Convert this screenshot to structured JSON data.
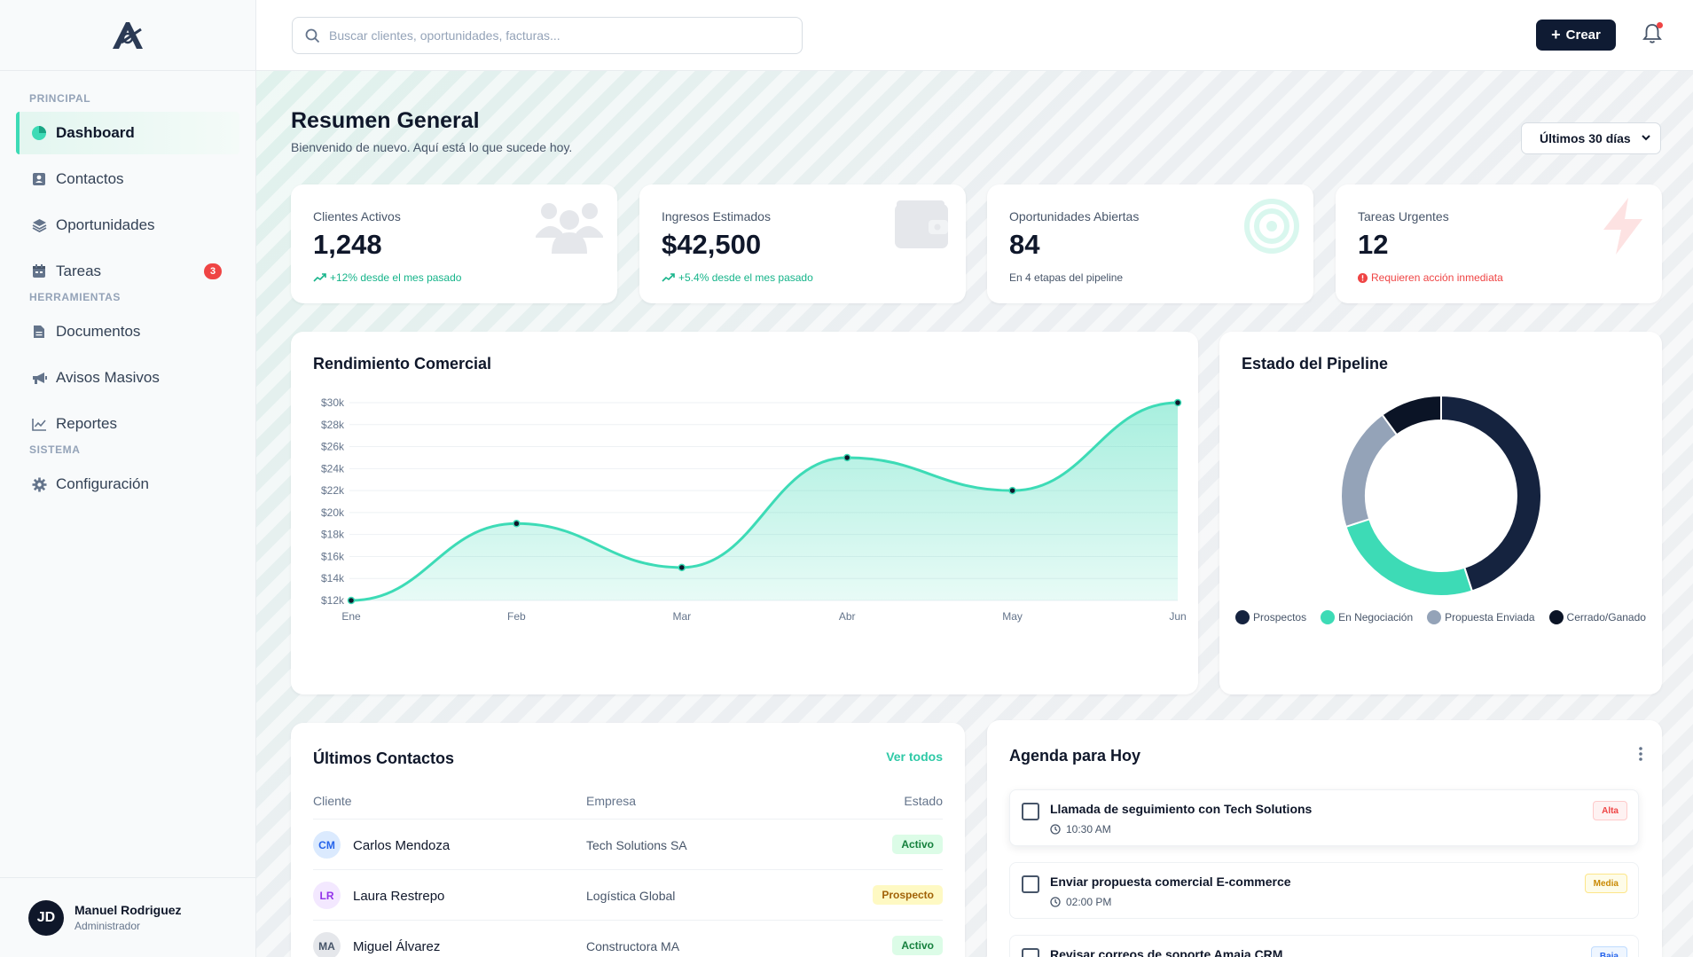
{
  "colors": {
    "accent": "#3ddbb6",
    "brand_dark": "#0f1b33",
    "danger": "#ef4444",
    "success": "#16b48a",
    "pipeline_prospectos": "#15233f",
    "pipeline_negociacion": "#3ddbb6",
    "pipeline_propuesta": "#94a3b8",
    "pipeline_cerrado": "#0b1426"
  },
  "topbar": {
    "search_placeholder": "Buscar clientes, oportunidades, facturas...",
    "create_label": "Crear",
    "search_icon": "search-icon",
    "bell_icon": "bell-icon"
  },
  "sidebar": {
    "sections": {
      "principal": "PRINCIPAL",
      "herramientas": "HERRAMIENTAS",
      "sistema": "SISTEMA"
    },
    "items": [
      {
        "label": "Dashboard",
        "icon": "pie-chart-icon",
        "active": true
      },
      {
        "label": "Contactos",
        "icon": "contact-card-icon"
      },
      {
        "label": "Oportunidades",
        "icon": "layers-icon"
      },
      {
        "label": "Tareas",
        "icon": "calendar-icon",
        "badge": "3"
      },
      {
        "label": "Documentos",
        "icon": "document-icon"
      },
      {
        "label": "Avisos Masivos",
        "icon": "megaphone-icon"
      },
      {
        "label": "Reportes",
        "icon": "line-chart-icon"
      },
      {
        "label": "Configuración",
        "icon": "gear-icon"
      }
    ],
    "user": {
      "initials": "JD",
      "name": "Manuel Rodriguez",
      "role": "Administrador"
    }
  },
  "header": {
    "title": "Resumen General",
    "subtitle": "Bienvenido de nuevo. Aquí está lo que sucede hoy.",
    "range_selected": "Últimos 30 días"
  },
  "kpis": [
    {
      "label": "Clientes Activos",
      "value": "1,248",
      "note": "+12% desde el mes pasado",
      "trend": "up",
      "icon": "users-icon"
    },
    {
      "label": "Ingresos Estimados",
      "value": "$42,500",
      "note": "+5.4% desde el mes pasado",
      "trend": "up",
      "icon": "wallet-icon"
    },
    {
      "label": "Oportunidades Abiertas",
      "value": "84",
      "note": "En 4 etapas del pipeline",
      "trend": "neutral",
      "icon": "target-icon"
    },
    {
      "label": "Tareas Urgentes",
      "value": "12",
      "note": "Requieren acción inmediata",
      "trend": "alert",
      "icon": "lightning-icon"
    }
  ],
  "charts": {
    "sales_title": "Rendimiento Comercial",
    "pipeline_title": "Estado del Pipeline"
  },
  "chart_data": [
    {
      "type": "area",
      "title": "Rendimiento Comercial",
      "categories": [
        "Ene",
        "Feb",
        "Mar",
        "Abr",
        "May",
        "Jun"
      ],
      "series": [
        {
          "values": [
            12000,
            19000,
            15000,
            25000,
            22000,
            30000
          ]
        }
      ],
      "y_ticks": [
        "$12k",
        "$14k",
        "$16k",
        "$18k",
        "$20k",
        "$22k",
        "$24k",
        "$26k",
        "$28k",
        "$30k"
      ],
      "ylim": [
        12000,
        30000
      ],
      "grid": true
    },
    {
      "type": "pie",
      "title": "Estado del Pipeline",
      "donut": true,
      "categories": [
        "Prospectos",
        "En Negociación",
        "Propuesta Enviada",
        "Cerrado/Ganado"
      ],
      "values": [
        45,
        25,
        20,
        10
      ],
      "legend_position": "bottom"
    }
  ],
  "contacts": {
    "title": "Últimos Contactos",
    "view_all": "Ver todos",
    "columns": [
      "Cliente",
      "Empresa",
      "Estado"
    ],
    "rows": [
      {
        "initials": "CM",
        "name": "Carlos Mendoza",
        "company": "Tech Solutions SA",
        "status": "Activo",
        "kind": "activo"
      },
      {
        "initials": "LR",
        "name": "Laura Restrepo",
        "company": "Logística Global",
        "status": "Prospecto",
        "kind": "prospecto"
      },
      {
        "initials": "MA",
        "name": "Miguel Álvarez",
        "company": "Constructora MA",
        "status": "Activo",
        "kind": "activo"
      }
    ]
  },
  "agenda": {
    "title": "Agenda para Hoy",
    "tasks": [
      {
        "title": "Llamada de seguimiento con Tech Solutions",
        "time": "10:30 AM",
        "priority": "Alta",
        "kind": "alta"
      },
      {
        "title": "Enviar propuesta comercial E-commerce",
        "time": "02:00 PM",
        "priority": "Media",
        "kind": "media"
      },
      {
        "title": "Revisar correos de soporte Amaia CRM",
        "time": "",
        "priority": "Baja",
        "kind": "baja"
      }
    ]
  }
}
